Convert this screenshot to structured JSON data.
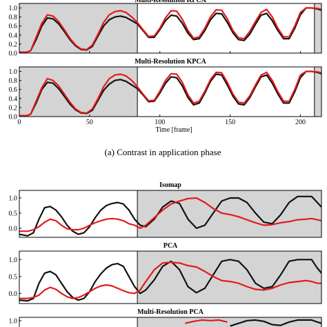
{
  "colors": {
    "pca_series": "#111111",
    "kpca_series": "#e31a1c",
    "shaded": "#d4d4d4",
    "axis": "#000000"
  },
  "figure_a": {
    "caption": "(a) Contrast in application phase",
    "xlabel": "Time [frame]"
  },
  "figure_b": {},
  "chart_data": [
    {
      "id": "a1",
      "type": "line",
      "title": "Multi-Resolution KPCA",
      "title_visible_text": "Multi-Resolution KPCA",
      "xlim": [
        0,
        215
      ],
      "ylim": [
        0.0,
        1.1
      ],
      "xticks": [
        0,
        50,
        100,
        150,
        200
      ],
      "xtick_labels": [
        "",
        "",
        "",
        "",
        ""
      ],
      "yticks": [
        0.0,
        0.2,
        0.4,
        0.6,
        0.8,
        1.0
      ],
      "ytick_labels": [
        "0.0",
        "0.2",
        "0.4",
        "0.6",
        "0.8",
        "1.0"
      ],
      "shaded_x": [
        [
          0,
          84
        ],
        [
          210,
          215
        ]
      ],
      "series": [
        {
          "x": [
            0,
            5,
            8,
            12,
            16,
            20,
            24,
            28,
            32,
            36,
            40,
            44,
            48,
            52,
            56,
            60,
            64,
            68,
            72,
            76,
            80,
            84,
            88,
            92,
            96,
            100,
            104,
            108,
            112,
            116,
            120,
            124,
            128,
            132,
            136,
            140,
            144,
            148,
            152,
            156,
            160,
            164,
            168,
            172,
            176,
            180,
            184,
            188,
            192,
            196,
            200,
            204,
            208,
            212,
            215
          ],
          "y": [
            0.02,
            0.02,
            0.05,
            0.3,
            0.6,
            0.78,
            0.76,
            0.65,
            0.48,
            0.3,
            0.16,
            0.08,
            0.07,
            0.15,
            0.38,
            0.6,
            0.74,
            0.8,
            0.82,
            0.79,
            0.72,
            0.65,
            0.5,
            0.35,
            0.35,
            0.52,
            0.72,
            0.84,
            0.82,
            0.66,
            0.44,
            0.3,
            0.32,
            0.5,
            0.74,
            0.88,
            0.87,
            0.68,
            0.45,
            0.3,
            0.28,
            0.42,
            0.64,
            0.84,
            0.88,
            0.72,
            0.5,
            0.32,
            0.32,
            0.55,
            0.85,
            1.0,
            1.0,
            0.98,
            0.95
          ]
        },
        {
          "x": [
            0,
            5,
            8,
            12,
            16,
            20,
            24,
            28,
            32,
            36,
            40,
            44,
            48,
            52,
            56,
            60,
            64,
            68,
            72,
            76,
            80,
            84,
            88,
            92,
            96,
            100,
            104,
            108,
            112,
            116,
            120,
            124,
            128,
            132,
            136,
            140,
            144,
            148,
            152,
            156,
            160,
            164,
            168,
            172,
            176,
            180,
            184,
            188,
            192,
            196,
            200,
            204,
            208,
            212,
            215
          ],
          "y": [
            0.02,
            0.02,
            0.05,
            0.35,
            0.66,
            0.85,
            0.82,
            0.7,
            0.52,
            0.33,
            0.18,
            0.09,
            0.08,
            0.18,
            0.42,
            0.68,
            0.85,
            0.92,
            0.94,
            0.9,
            0.8,
            0.68,
            0.52,
            0.37,
            0.38,
            0.55,
            0.78,
            0.94,
            0.93,
            0.75,
            0.5,
            0.33,
            0.36,
            0.55,
            0.8,
            0.96,
            0.95,
            0.76,
            0.5,
            0.34,
            0.32,
            0.48,
            0.7,
            0.9,
            0.97,
            0.8,
            0.55,
            0.36,
            0.36,
            0.6,
            0.9,
            1.0,
            1.0,
            0.99,
            0.97
          ]
        }
      ]
    },
    {
      "id": "a2",
      "type": "line",
      "title": "Multi-Resolution KPCA",
      "xlim": [
        0,
        215
      ],
      "ylim": [
        0.0,
        1.1
      ],
      "xticks": [
        0,
        50,
        100,
        150,
        200
      ],
      "xtick_labels": [
        "0",
        "50",
        "100",
        "150",
        "200"
      ],
      "yticks": [
        0.0,
        0.2,
        0.4,
        0.6,
        0.8,
        1.0
      ],
      "ytick_labels": [
        "0.0",
        "0.2",
        "0.4",
        "0.6",
        "0.8",
        "1.0"
      ],
      "shaded_x": [
        [
          0,
          84
        ],
        [
          210,
          215
        ]
      ],
      "series": [
        {
          "x": [
            0,
            5,
            8,
            12,
            16,
            20,
            24,
            28,
            32,
            36,
            40,
            44,
            48,
            52,
            56,
            60,
            64,
            68,
            72,
            76,
            80,
            84,
            88,
            92,
            96,
            100,
            104,
            108,
            112,
            116,
            120,
            124,
            128,
            132,
            136,
            140,
            144,
            148,
            152,
            156,
            160,
            164,
            168,
            172,
            176,
            180,
            184,
            188,
            192,
            196,
            200,
            204,
            208,
            212,
            215
          ],
          "y": [
            0.02,
            0.02,
            0.05,
            0.3,
            0.6,
            0.76,
            0.74,
            0.62,
            0.45,
            0.28,
            0.15,
            0.08,
            0.07,
            0.14,
            0.36,
            0.58,
            0.72,
            0.8,
            0.82,
            0.78,
            0.7,
            0.62,
            0.48,
            0.33,
            0.34,
            0.52,
            0.74,
            0.88,
            0.86,
            0.68,
            0.42,
            0.26,
            0.3,
            0.52,
            0.78,
            0.94,
            0.92,
            0.7,
            0.45,
            0.28,
            0.26,
            0.42,
            0.66,
            0.88,
            0.92,
            0.74,
            0.5,
            0.3,
            0.3,
            0.55,
            0.86,
            1.0,
            1.0,
            0.98,
            0.95
          ]
        },
        {
          "x": [
            0,
            5,
            8,
            12,
            16,
            20,
            24,
            28,
            32,
            36,
            40,
            44,
            48,
            52,
            56,
            60,
            64,
            68,
            72,
            76,
            80,
            84,
            88,
            92,
            96,
            100,
            104,
            108,
            112,
            116,
            120,
            124,
            128,
            132,
            136,
            140,
            144,
            148,
            152,
            156,
            160,
            164,
            168,
            172,
            176,
            180,
            184,
            188,
            192,
            196,
            200,
            204,
            208,
            212,
            215
          ],
          "y": [
            0.02,
            0.02,
            0.05,
            0.34,
            0.64,
            0.84,
            0.8,
            0.68,
            0.5,
            0.32,
            0.17,
            0.09,
            0.08,
            0.17,
            0.4,
            0.66,
            0.84,
            0.92,
            0.94,
            0.9,
            0.8,
            0.66,
            0.5,
            0.35,
            0.36,
            0.56,
            0.8,
            0.95,
            0.94,
            0.76,
            0.48,
            0.3,
            0.34,
            0.56,
            0.82,
            0.98,
            0.97,
            0.76,
            0.5,
            0.32,
            0.3,
            0.46,
            0.7,
            0.92,
            0.98,
            0.8,
            0.55,
            0.34,
            0.34,
            0.6,
            0.92,
            1.0,
            1.0,
            0.99,
            0.97
          ]
        }
      ]
    },
    {
      "id": "b1",
      "type": "line",
      "title": "Isomap",
      "xlim": [
        0,
        215
      ],
      "ylim": [
        -0.3,
        1.25
      ],
      "yticks": [
        0.0,
        0.5,
        1.0
      ],
      "ytick_labels": [
        "0.0",
        "0.5",
        "1.0"
      ],
      "shaded_x": [
        [
          84,
          215
        ]
      ],
      "series": [
        {
          "x": [
            0,
            6,
            10,
            14,
            18,
            22,
            26,
            30,
            34,
            38,
            42,
            46,
            50,
            54,
            58,
            62,
            66,
            70,
            74,
            78,
            82,
            86,
            90,
            96,
            102,
            108,
            114,
            120,
            126,
            132,
            138,
            144,
            150,
            156,
            162,
            168,
            174,
            180,
            186,
            192,
            198,
            204,
            208,
            212,
            215
          ],
          "y": [
            -0.2,
            -0.25,
            -0.15,
            0.3,
            0.68,
            0.72,
            0.6,
            0.38,
            0.1,
            -0.1,
            -0.2,
            -0.15,
            0.05,
            0.35,
            0.6,
            0.75,
            0.82,
            0.85,
            0.8,
            0.6,
            0.3,
            0.1,
            0.05,
            0.3,
            0.7,
            0.9,
            0.82,
            0.3,
            0.0,
            0.1,
            0.5,
            0.9,
            1.0,
            1.0,
            0.85,
            0.5,
            0.2,
            0.15,
            0.45,
            0.85,
            1.05,
            1.05,
            1.05,
            0.85,
            0.7
          ]
        },
        {
          "x": [
            0,
            6,
            10,
            14,
            18,
            22,
            26,
            30,
            34,
            38,
            42,
            46,
            50,
            54,
            58,
            62,
            66,
            70,
            74,
            78,
            82,
            86,
            90,
            96,
            102,
            108,
            114,
            120,
            126,
            132,
            138,
            144,
            150,
            156,
            162,
            168,
            174,
            180,
            186,
            192,
            198,
            204,
            208,
            212,
            215
          ],
          "y": [
            -0.1,
            -0.1,
            -0.05,
            0.05,
            0.2,
            0.3,
            0.25,
            0.1,
            -0.02,
            -0.05,
            -0.05,
            0.0,
            0.1,
            0.18,
            0.25,
            0.3,
            0.32,
            0.3,
            0.25,
            0.15,
            0.1,
            0.0,
            0.1,
            0.35,
            0.6,
            0.8,
            0.9,
            0.98,
            1.0,
            0.85,
            0.65,
            0.5,
            0.45,
            0.38,
            0.28,
            0.18,
            0.1,
            0.12,
            0.18,
            0.22,
            0.28,
            0.3,
            0.32,
            0.28,
            0.25
          ]
        }
      ]
    },
    {
      "id": "b2",
      "type": "line",
      "title": "PCA",
      "xlim": [
        0,
        215
      ],
      "ylim": [
        -0.3,
        1.25
      ],
      "yticks": [
        0.0,
        0.5,
        1.0
      ],
      "ytick_labels": [
        "0.0",
        "0.5",
        "1.0"
      ],
      "shaded_x": [
        [
          84,
          215
        ]
      ],
      "series": [
        {
          "x": [
            0,
            6,
            10,
            14,
            18,
            22,
            26,
            30,
            34,
            38,
            42,
            46,
            50,
            54,
            58,
            62,
            66,
            70,
            74,
            78,
            82,
            86,
            90,
            96,
            102,
            108,
            114,
            120,
            126,
            132,
            138,
            144,
            150,
            156,
            162,
            168,
            174,
            180,
            186,
            192,
            198,
            204,
            208,
            212,
            215
          ],
          "y": [
            -0.2,
            -0.22,
            -0.15,
            0.3,
            0.6,
            0.65,
            0.55,
            0.3,
            0.05,
            -0.12,
            -0.2,
            -0.15,
            0.05,
            0.35,
            0.58,
            0.75,
            0.85,
            0.88,
            0.8,
            0.5,
            0.2,
            0.0,
            0.1,
            0.4,
            0.8,
            0.95,
            0.7,
            0.2,
            0.02,
            0.15,
            0.55,
            0.95,
            1.0,
            0.95,
            0.7,
            0.3,
            0.15,
            0.2,
            0.55,
            0.95,
            1.0,
            1.0,
            1.0,
            0.75,
            0.6
          ]
        },
        {
          "x": [
            0,
            6,
            10,
            14,
            18,
            22,
            26,
            30,
            34,
            38,
            42,
            46,
            50,
            54,
            58,
            62,
            66,
            70,
            74,
            78,
            82,
            86,
            90,
            96,
            102,
            108,
            114,
            120,
            126,
            132,
            138,
            144,
            150,
            156,
            162,
            168,
            174,
            180,
            186,
            192,
            198,
            204,
            208,
            212,
            215
          ],
          "y": [
            -0.15,
            -0.15,
            -0.12,
            -0.05,
            0.1,
            0.18,
            0.12,
            0.0,
            -0.1,
            -0.15,
            -0.12,
            -0.05,
            0.05,
            0.15,
            0.22,
            0.25,
            0.22,
            0.15,
            0.08,
            0.02,
            0.0,
            0.1,
            0.35,
            0.7,
            0.9,
            0.92,
            0.9,
            0.82,
            0.78,
            0.65,
            0.5,
            0.38,
            0.35,
            0.3,
            0.2,
            0.12,
            0.1,
            0.15,
            0.25,
            0.32,
            0.35,
            0.38,
            0.35,
            0.3,
            0.3
          ]
        }
      ]
    },
    {
      "id": "b3",
      "type": "line",
      "title": "Multi-Resolution PCA",
      "xlim": [
        0,
        215
      ],
      "ylim": [
        -0.3,
        1.25
      ],
      "yticks": [
        1.0
      ],
      "ytick_labels": [
        "1.0"
      ],
      "shaded_x": [
        [
          84,
          215
        ]
      ],
      "series": [
        {
          "x": [
            150,
            156,
            162,
            168,
            174,
            180,
            186,
            192,
            198,
            204,
            208,
            212,
            215
          ],
          "y": [
            0.6,
            0.8,
            1.0,
            1.05,
            0.95,
            0.7,
            0.65,
            0.9,
            1.05,
            1.05,
            1.05,
            0.9,
            0.8
          ]
        },
        {
          "x": [
            118,
            124,
            130,
            136,
            142,
            148
          ],
          "y": [
            0.8,
            0.95,
            1.05,
            1.0,
            1.05,
            0.9
          ]
        }
      ]
    }
  ]
}
